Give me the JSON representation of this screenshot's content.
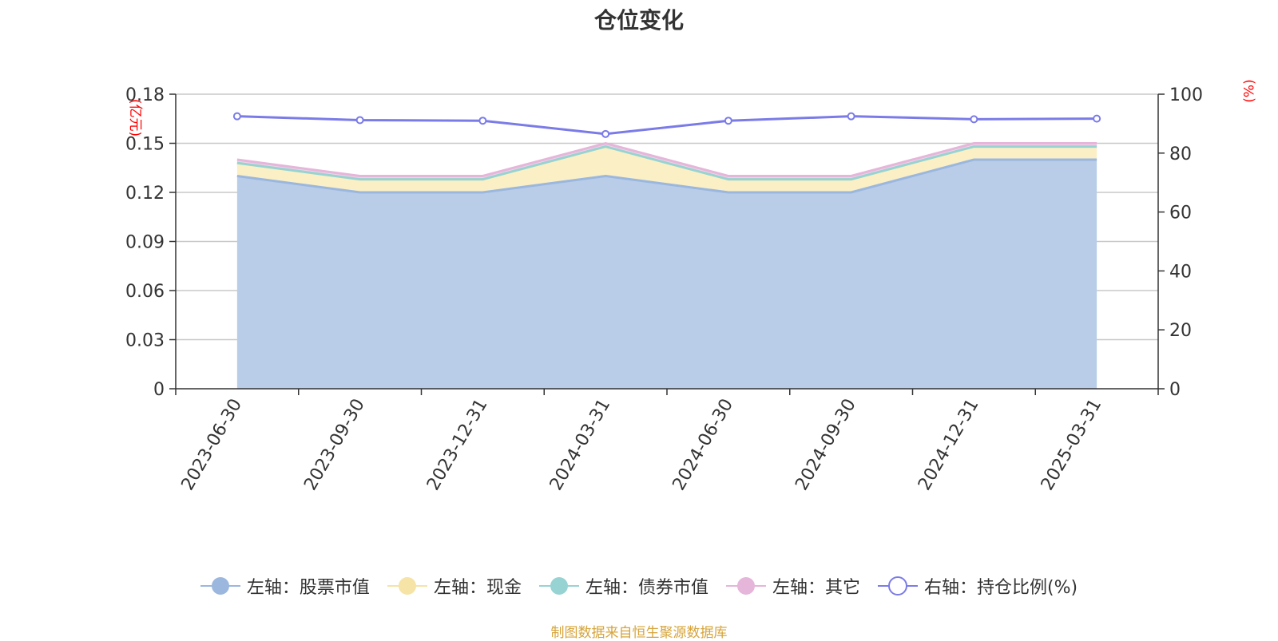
{
  "chart_data": {
    "type": "area",
    "title": "仓位变化",
    "y_left_unit": "(亿元)",
    "y_right_unit": "(%)",
    "categories": [
      "2023-06-30",
      "2023-09-30",
      "2023-12-31",
      "2024-03-31",
      "2024-06-30",
      "2024-09-30",
      "2024-12-31",
      "2025-03-31"
    ],
    "y_left": {
      "min": 0,
      "max": 0.18,
      "ticks": [
        "0",
        "0.03",
        "0.06",
        "0.09",
        "0.12",
        "0.15",
        "0.18"
      ]
    },
    "y_right": {
      "min": 0,
      "max": 100,
      "ticks": [
        "0",
        "20",
        "40",
        "60",
        "80",
        "100"
      ]
    },
    "series": [
      {
        "name": "左轴：股票市值",
        "axis": "left",
        "stack": true,
        "values": [
          0.13,
          0.12,
          0.12,
          0.13,
          0.12,
          0.12,
          0.14,
          0.14
        ],
        "color": "#9bb7de",
        "fill": "#b9cde9"
      },
      {
        "name": "左轴：现金",
        "axis": "left",
        "stack": true,
        "values": [
          0.008,
          0.008,
          0.008,
          0.018,
          0.008,
          0.008,
          0.008,
          0.008
        ],
        "color": "#f6e3a6",
        "fill": "#fbefc5"
      },
      {
        "name": "左轴：债券市值",
        "axis": "left",
        "stack": true,
        "values": [
          0,
          0,
          0,
          0,
          0,
          0,
          0,
          0
        ],
        "color": "#97d3d3",
        "fill": "#c5e7e7"
      },
      {
        "name": "左轴：其它",
        "axis": "left",
        "stack": true,
        "values": [
          0.002,
          0.002,
          0.002,
          0.002,
          0.002,
          0.002,
          0.002,
          0.002
        ],
        "color": "#e5b5da",
        "fill": "#f0d3ea"
      },
      {
        "name": "右轴：持仓比例(%)",
        "axis": "right",
        "type": "line",
        "values": [
          92.5,
          91.2,
          91.0,
          86.5,
          91.0,
          92.5,
          91.5,
          91.7
        ],
        "color": "#7b7be8"
      }
    ],
    "grid": true,
    "legend_position": "bottom"
  },
  "source": "制图数据来自恒生聚源数据库"
}
